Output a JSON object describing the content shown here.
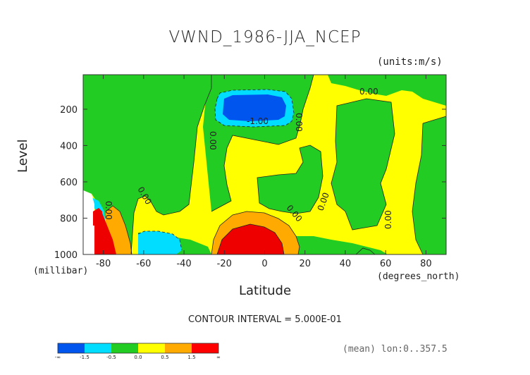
{
  "chart_data": {
    "type": "contour",
    "title": "VWND_1986-JJA_NCEP",
    "units": "(units:m/s)",
    "xlabel": "Latitude",
    "xunit": "(degrees_north)",
    "ylabel": "Level",
    "yunit": "(millibar)",
    "xlim": [
      -90,
      90
    ],
    "ylim": [
      1000,
      10
    ],
    "y_reversed": true,
    "xticks": [
      "-80",
      "-60",
      "-40",
      "-20",
      "0",
      "20",
      "40",
      "60",
      "80"
    ],
    "xtick_values": [
      -80,
      -60,
      -40,
      -20,
      0,
      20,
      40,
      60,
      80
    ],
    "yticks": [
      "200",
      "400",
      "600",
      "800",
      "1000"
    ],
    "ytick_values": [
      200,
      400,
      600,
      800,
      1000
    ],
    "contour_interval_text": "CONTOUR INTERVAL = 5.000E-01",
    "contour_interval": 0.5,
    "contour_labels": [
      "0.00",
      "0.00",
      "0.00",
      "0.00",
      "0.00",
      "0.00",
      "0.00",
      "0.00",
      "-1.00"
    ],
    "features": [
      {
        "name": "negative core upper tropics",
        "lat_range": [
          -20,
          10
        ],
        "level_range": [
          130,
          250
        ],
        "min_value": -1.5
      },
      {
        "name": "positive core near surface",
        "lat_range": [
          -25,
          15
        ],
        "level_range": [
          850,
          1000
        ],
        "max_value": 1.5
      },
      {
        "name": "positive core antarctic",
        "lat_range": [
          -90,
          -78
        ],
        "level_range": [
          750,
          1000
        ],
        "max_value": 1.5
      },
      {
        "name": "negative region southern low levels",
        "lat_range": [
          -65,
          -45
        ],
        "level_range": [
          900,
          1000
        ],
        "min_value": -0.5
      }
    ],
    "colorbar": {
      "colors": [
        "#0055ee",
        "#00ddff",
        "#22cc22",
        "#ffff00",
        "#ffaa00",
        "#ff0000"
      ],
      "labels": [
        "-∞",
        "-1.5",
        "-0.5",
        "0.0",
        "0.5",
        "1.5",
        "∞"
      ],
      "bounds": [
        -1.5,
        -1.0,
        -0.5,
        0.0,
        0.5,
        1.0,
        1.5
      ]
    },
    "footer_info": "(mean) lon:0..357.5"
  },
  "colors": {
    "green": "#22cc22",
    "yellow": "#ffff00",
    "orange": "#ffaa00",
    "red": "#ee0000",
    "cyan": "#00ddff",
    "blue": "#0055ee"
  }
}
